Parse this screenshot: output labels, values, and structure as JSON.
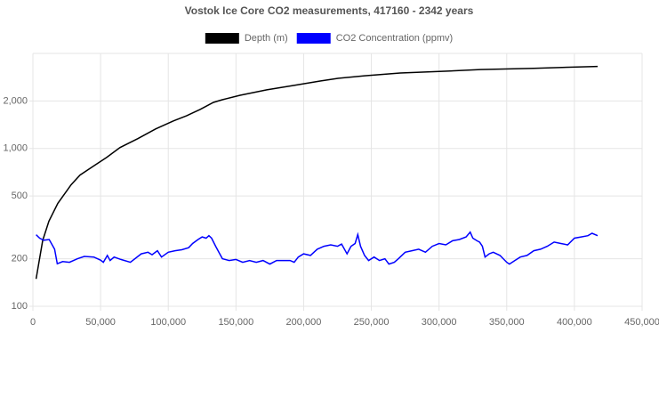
{
  "chart_data": {
    "type": "line",
    "title": "Vostok Ice Core CO2 measurements, 417160 - 2342 years",
    "log_y": true,
    "grid": true,
    "legend": "top",
    "xlim": [
      0,
      450000
    ],
    "xticks": [
      0,
      {
        "value": 50000,
        "label": "50,000"
      },
      {
        "value": 100000,
        "label": "100,000"
      },
      {
        "value": 150000,
        "label": "150,000"
      },
      {
        "value": 200000,
        "label": "200,000"
      },
      {
        "value": 250000,
        "label": "250,000"
      },
      {
        "value": 300000,
        "label": "300,000"
      },
      {
        "value": 350000,
        "label": "350,000"
      },
      {
        "value": 400000,
        "label": "400,000"
      },
      {
        "value": 450000,
        "label": "450,000"
      }
    ],
    "ylim": [
      100,
      4000
    ],
    "yticks": [
      100,
      200,
      500,
      {
        "value": 1000,
        "label": "1,000"
      },
      {
        "value": 2000,
        "label": "2,000"
      }
    ],
    "series": [
      {
        "name": "Depth (m)",
        "color": "#000000",
        "x": [
          2342,
          7226,
          11825,
          18394,
          28248,
          34818,
          44672,
          54526,
          64380,
          77518,
          90657,
          103796,
          113650,
          123504,
          133358,
          139927,
          153066,
          172774,
          192482,
          212190,
          225328,
          245036,
          271314,
          304161,
          330438,
          369854,
          417160
        ],
        "values": [
          149,
          261,
          346,
          449,
          589,
          678,
          773,
          879,
          1014,
          1154,
          1330,
          1494,
          1614,
          1767,
          1959,
          2037,
          2173,
          2350,
          2506,
          2674,
          2779,
          2889,
          3004,
          3085,
          3162,
          3222,
          3310
        ]
      },
      {
        "name": "CO2 Concentration (ppmv)",
        "color": "#0000ff",
        "x": [
          2342,
          5000,
          8000,
          12000,
          16000,
          18000,
          22000,
          27000,
          33000,
          38000,
          45000,
          50000,
          52000,
          55000,
          57000,
          60000,
          65000,
          72000,
          80000,
          85000,
          88000,
          92000,
          95000,
          100000,
          105000,
          110000,
          115000,
          118000,
          122000,
          125000,
          128000,
          130000,
          132000,
          135000,
          138000,
          140000,
          145000,
          150000,
          155000,
          160000,
          165000,
          170000,
          175000,
          180000,
          190000,
          193000,
          196000,
          200000,
          205000,
          210000,
          215000,
          220000,
          225000,
          228000,
          232000,
          235000,
          238000,
          240000,
          242000,
          245000,
          248000,
          252000,
          256000,
          260000,
          263000,
          267000,
          270000,
          275000,
          280000,
          285000,
          290000,
          295000,
          300000,
          305000,
          310000,
          315000,
          320000,
          323000,
          325000,
          328000,
          330000,
          332000,
          334000,
          337000,
          340000,
          345000,
          350000,
          352000,
          356000,
          360000,
          365000,
          370000,
          375000,
          380000,
          385000,
          390000,
          395000,
          400000,
          405000,
          410000,
          413000,
          417160
        ],
        "values": [
          284,
          270,
          262,
          265,
          230,
          186,
          192,
          190,
          200,
          207,
          205,
          196,
          190,
          210,
          195,
          205,
          198,
          190,
          215,
          220,
          212,
          225,
          205,
          220,
          225,
          228,
          235,
          250,
          265,
          275,
          270,
          280,
          270,
          240,
          215,
          200,
          195,
          198,
          190,
          195,
          190,
          195,
          185,
          195,
          195,
          190,
          205,
          215,
          210,
          230,
          240,
          245,
          240,
          248,
          215,
          240,
          250,
          285,
          240,
          210,
          195,
          205,
          195,
          200,
          185,
          190,
          200,
          220,
          225,
          230,
          220,
          240,
          250,
          245,
          260,
          265,
          275,
          295,
          270,
          260,
          255,
          240,
          205,
          215,
          220,
          210,
          190,
          185,
          195,
          205,
          210,
          225,
          230,
          240,
          255,
          250,
          245,
          270,
          275,
          280,
          290,
          280
        ]
      }
    ]
  }
}
